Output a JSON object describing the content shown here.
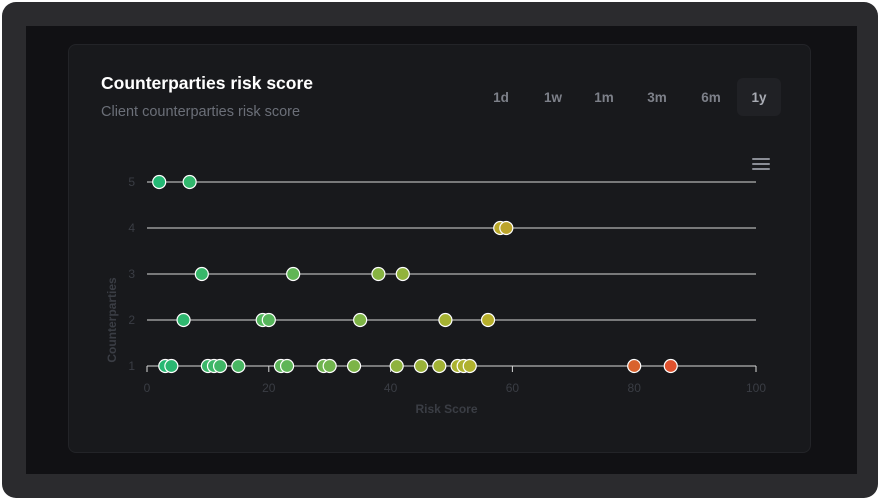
{
  "card": {
    "title": "Counterparties risk score",
    "subtitle": "Client counterparties risk score"
  },
  "time_ranges": [
    "1d",
    "1w",
    "1m",
    "3m",
    "6m",
    "1y"
  ],
  "active_range": "1y",
  "colors": {
    "low": "#1fb877",
    "mid": "#b5b12a",
    "high": "#e0522e",
    "grid": "#d9d9d9",
    "axis_text": "#3a3d44"
  },
  "chart_data": {
    "type": "scatter",
    "xlabel": "Risk Score",
    "ylabel": "Counterparties",
    "xlim": [
      0,
      100
    ],
    "ylim": [
      1,
      5
    ],
    "x_ticks": [
      0,
      20,
      40,
      60,
      80,
      100
    ],
    "y_ticks": [
      1,
      2,
      3,
      4,
      5
    ],
    "grid": "horizontal",
    "points": [
      {
        "x": 2,
        "y": 5
      },
      {
        "x": 7,
        "y": 5
      },
      {
        "x": 58,
        "y": 4
      },
      {
        "x": 59,
        "y": 4
      },
      {
        "x": 9,
        "y": 3
      },
      {
        "x": 24,
        "y": 3
      },
      {
        "x": 38,
        "y": 3
      },
      {
        "x": 42,
        "y": 3
      },
      {
        "x": 6,
        "y": 2
      },
      {
        "x": 19,
        "y": 2
      },
      {
        "x": 20,
        "y": 2
      },
      {
        "x": 35,
        "y": 2
      },
      {
        "x": 49,
        "y": 2
      },
      {
        "x": 56,
        "y": 2
      },
      {
        "x": 3,
        "y": 1
      },
      {
        "x": 4,
        "y": 1
      },
      {
        "x": 10,
        "y": 1
      },
      {
        "x": 11,
        "y": 1
      },
      {
        "x": 12,
        "y": 1
      },
      {
        "x": 15,
        "y": 1
      },
      {
        "x": 22,
        "y": 1
      },
      {
        "x": 23,
        "y": 1
      },
      {
        "x": 29,
        "y": 1
      },
      {
        "x": 30,
        "y": 1
      },
      {
        "x": 34,
        "y": 1
      },
      {
        "x": 41,
        "y": 1
      },
      {
        "x": 45,
        "y": 1
      },
      {
        "x": 48,
        "y": 1
      },
      {
        "x": 51,
        "y": 1
      },
      {
        "x": 52,
        "y": 1
      },
      {
        "x": 53,
        "y": 1
      },
      {
        "x": 80,
        "y": 1
      },
      {
        "x": 86,
        "y": 1
      }
    ]
  }
}
